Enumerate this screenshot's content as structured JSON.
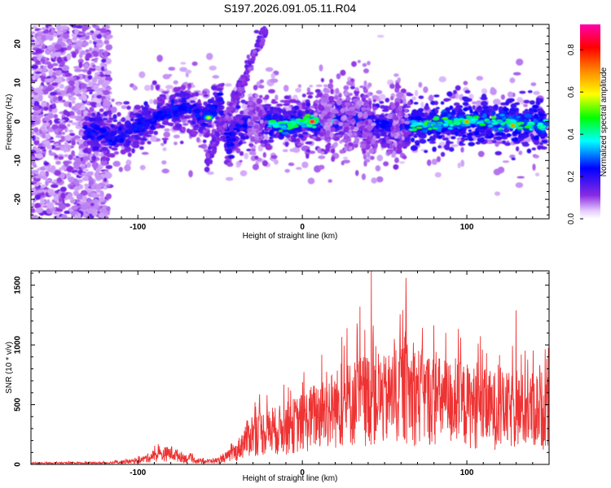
{
  "figure": {
    "title": "S197.2026.091.05.11.R04"
  },
  "chart_data": [
    {
      "type": "heatmap",
      "title": "S197.2026.091.05.11.R04",
      "xlabel": "Height of straight line (km)",
      "ylabel": "Frequency (Hz)",
      "xlim": [
        -165,
        150
      ],
      "ylim": [
        -25,
        25
      ],
      "x_ticks": [
        -100,
        0,
        100
      ],
      "y_ticks": [
        -20,
        -10,
        0,
        10,
        20
      ],
      "colorbar": {
        "label": "Normalized spectral amplitude",
        "range": [
          0,
          0.92
        ],
        "ticks": [
          0.0,
          0.2,
          0.4,
          0.6,
          0.8
        ],
        "colormap": "rainbow (purple-blue-cyan-green-yellow-orange-red-magenta)"
      },
      "ridge": [
        {
          "x": -125,
          "freq": -3
        },
        {
          "x": -110,
          "freq": -4
        },
        {
          "x": -100,
          "freq": -1
        },
        {
          "x": -90,
          "freq": 1
        },
        {
          "x": -80,
          "freq": 3
        },
        {
          "x": -70,
          "freq": 4
        },
        {
          "x": -60,
          "freq": 1
        },
        {
          "x": -55,
          "freq": 3
        },
        {
          "x": -50,
          "freq": 5
        },
        {
          "x": -45,
          "freq": -5
        },
        {
          "x": -40,
          "freq": -2
        },
        {
          "x": -30,
          "freq": 0
        },
        {
          "x": -10,
          "freq": -1
        },
        {
          "x": 0,
          "freq": 0
        },
        {
          "x": 10,
          "freq": 0
        },
        {
          "x": 30,
          "freq": 1
        },
        {
          "x": 50,
          "freq": -1
        },
        {
          "x": 70,
          "freq": -1
        },
        {
          "x": 100,
          "freq": 0
        },
        {
          "x": 120,
          "freq": 0
        },
        {
          "x": 148,
          "freq": -1
        }
      ],
      "peaks": [
        {
          "x": 6,
          "freq": 0,
          "amplitude": 0.9
        },
        {
          "x": 100,
          "freq": 0,
          "amplitude": 0.7
        },
        {
          "x": 128,
          "freq": -1,
          "amplitude": 0.7
        },
        {
          "x": -57,
          "freq": 1,
          "amplitude": 0.6
        }
      ]
    },
    {
      "type": "line",
      "xlabel": "Height of straight line (km)",
      "ylabel": "SNR (10 * v/v)",
      "xlim": [
        -165,
        150
      ],
      "ylim": [
        0,
        1620
      ],
      "x_ticks": [
        -100,
        0,
        100
      ],
      "y_ticks": [
        0,
        500,
        1000,
        1500
      ],
      "series": [
        {
          "name": "SNR",
          "color": "#ee3333",
          "envelope": {
            "x": [
              -165,
              -140,
              -120,
              -100,
              -90,
              -80,
              -70,
              -60,
              -50,
              -40,
              -35,
              -30,
              -20,
              -10,
              0,
              10,
              20,
              30,
              40,
              45,
              50,
              60,
              70,
              80,
              90,
              100,
              110,
              120,
              130,
              140,
              150
            ],
            "y": [
              15,
              20,
              20,
              50,
              120,
              160,
              80,
              40,
              60,
              180,
              340,
              450,
              460,
              520,
              600,
              720,
              800,
              880,
              950,
              1000,
              900,
              1050,
              1000,
              920,
              880,
              850,
              800,
              780,
              760,
              780,
              800
            ]
          },
          "peaks": [
            {
              "x": 42,
              "y": 1620
            },
            {
              "x": 63,
              "y": 1560
            },
            {
              "x": 35,
              "y": 1320
            },
            {
              "x": 130,
              "y": 1290
            }
          ]
        }
      ]
    }
  ]
}
